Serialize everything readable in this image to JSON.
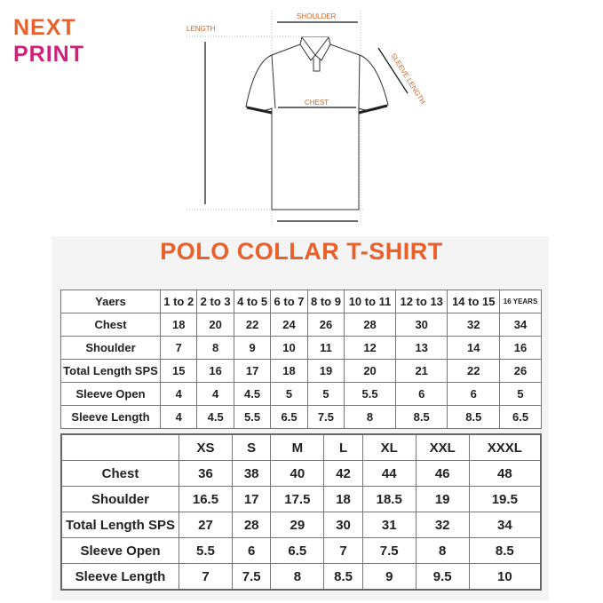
{
  "logo": {
    "line1": "NEXT",
    "line2": "PRINT"
  },
  "diagram": {
    "length": "LENGTH",
    "shoulder": "SHOULDER",
    "chest": "CHEST",
    "sleeve_length": "SLEEVE LENGTH"
  },
  "title": "POLO COLLAR T-SHIRT",
  "kids_table": {
    "header": [
      "Yaers",
      "1 to 2",
      "2 to 3",
      "4 to 5",
      "6 to 7",
      "8 to 9",
      "10 to 11",
      "12 to 13",
      "14 to 15",
      "16 YEARS"
    ],
    "rows": [
      [
        "Chest",
        "18",
        "20",
        "22",
        "24",
        "26",
        "28",
        "30",
        "32",
        "34"
      ],
      [
        "Shoulder",
        "7",
        "8",
        "9",
        "10",
        "11",
        "12",
        "13",
        "14",
        "16"
      ],
      [
        "Total Length SPS",
        "15",
        "16",
        "17",
        "18",
        "19",
        "20",
        "21",
        "22",
        "26"
      ],
      [
        "Sleeve Open",
        "4",
        "4",
        "4.5",
        "5",
        "5",
        "5.5",
        "6",
        "6",
        "5"
      ],
      [
        "Sleeve Length",
        "4",
        "4.5",
        "5.5",
        "6.5",
        "7.5",
        "8",
        "8.5",
        "8.5",
        "6.5"
      ]
    ]
  },
  "adult_table": {
    "header": [
      "",
      "XS",
      "S",
      "M",
      "L",
      "XL",
      "XXL",
      "XXXL"
    ],
    "rows": [
      [
        "Chest",
        "36",
        "38",
        "40",
        "42",
        "44",
        "46",
        "48"
      ],
      [
        "Shoulder",
        "16.5",
        "17",
        "17.5",
        "18",
        "18.5",
        "19",
        "19.5"
      ],
      [
        "Total Length SPS",
        "27",
        "28",
        "29",
        "30",
        "31",
        "32",
        "34"
      ],
      [
        "Sleeve Open",
        "5.5",
        "6",
        "6.5",
        "7",
        "7.5",
        "8",
        "8.5"
      ],
      [
        "Sleeve Length",
        "7",
        "7.5",
        "8",
        "8.5",
        "9",
        "9.5",
        "10"
      ]
    ]
  }
}
